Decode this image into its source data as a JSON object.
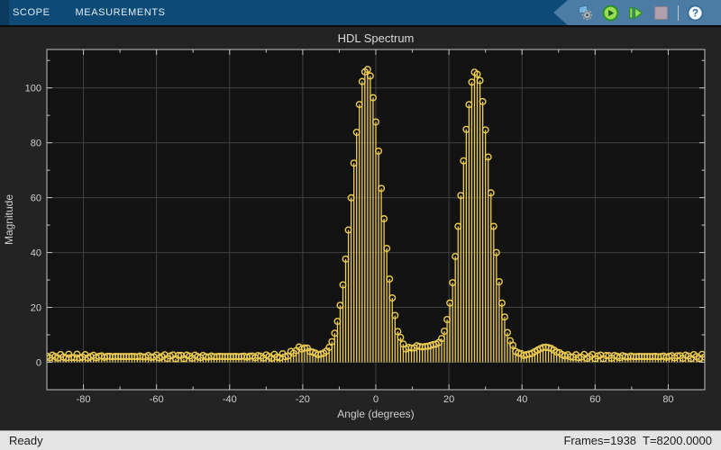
{
  "toolbar": {
    "tabs": [
      {
        "label": "SCOPE"
      },
      {
        "label": "MEASUREMENTS"
      }
    ],
    "icons": {
      "settings": "gear-with-blue-flag",
      "run": "green-play-circle",
      "step_forward": "green-bar-and-triangle",
      "stop": "gray-square-disabled",
      "help": "question-mark-circle"
    },
    "help_glyph": "?"
  },
  "chart_data": {
    "type": "stem",
    "title": "HDL Spectrum",
    "xlabel": "Angle (degrees)",
    "ylabel": "Magnitude",
    "xlim": [
      -90,
      90
    ],
    "ylim": [
      -10,
      114
    ],
    "xticks": [
      -80,
      -60,
      -40,
      -20,
      0,
      20,
      40,
      60,
      80
    ],
    "yticks": [
      0,
      20,
      40,
      60,
      80,
      100
    ],
    "x_minor_ticks": [
      -90,
      -70,
      -50,
      -30,
      -10,
      10,
      30,
      50,
      70,
      90
    ],
    "y_minor_ticks": [
      10,
      30,
      50,
      70,
      90,
      110
    ],
    "grid": true,
    "legend": "none",
    "marker": "open-circle",
    "sample_step_deg": 0.75,
    "peaks": [
      {
        "angle": -2.5,
        "magnitude": 105,
        "sigma": 3.9
      },
      {
        "angle": 27.4,
        "magnitude": 104,
        "sigma": 3.9
      }
    ],
    "sidelobes": [
      {
        "angle": -20.0,
        "amp": 3.2,
        "sigma": 2.2
      },
      {
        "angle": 11.5,
        "amp": 3.4,
        "sigma": 2.0
      },
      {
        "angle": 15.5,
        "amp": 2.8,
        "sigma": 1.6
      },
      {
        "angle": 46.5,
        "amp": 3.4,
        "sigma": 2.6
      }
    ],
    "baseline": {
      "level": 2.1,
      "ripple_amp": 0.85,
      "ripple_freq": 2.9,
      "mod_freq": 0.22,
      "mod_phase": 1.0
    }
  },
  "status": {
    "left": "Ready",
    "right": "Frames=1938  T=8200.0000"
  },
  "colors": {
    "toolbar_bg": "#0d4a75",
    "ribbon_bg": "#4c7ba3",
    "figure_bg": "#232323",
    "axes_bg": "#121212",
    "grid": "#404040",
    "axis_line": "#c2c2c2",
    "tick_label": "#cfcfcf",
    "stem": "#edcc52",
    "status_bg": "#e4e4e4"
  }
}
